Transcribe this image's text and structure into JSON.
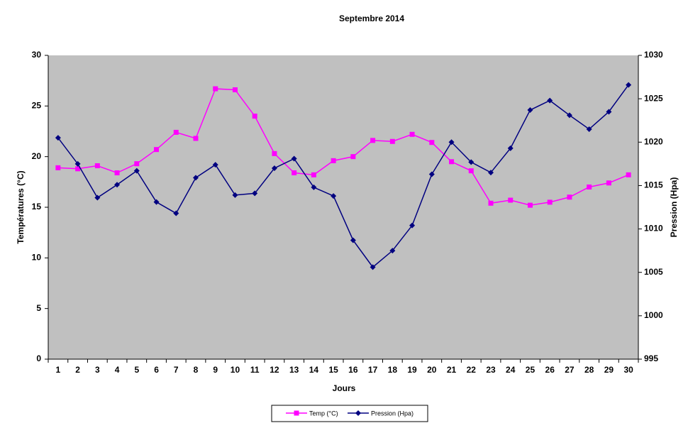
{
  "chart_data": {
    "type": "line",
    "title": "Septembre 2014",
    "x_label": "Jours",
    "y_label": "Températures (°C)",
    "y2_label": "Pression (Hpa)",
    "categories": [
      "1",
      "2",
      "3",
      "4",
      "5",
      "6",
      "7",
      "8",
      "9",
      "10",
      "11",
      "12",
      "13",
      "14",
      "15",
      "16",
      "17",
      "18",
      "19",
      "20",
      "21",
      "22",
      "23",
      "24",
      "25",
      "26",
      "27",
      "28",
      "29",
      "30"
    ],
    "series": [
      {
        "name": "Temp (°C)",
        "color": "#ff00ff",
        "marker": "square",
        "values": [
          18.9,
          18.8,
          19.1,
          18.4,
          19.3,
          20.7,
          22.4,
          21.8,
          26.7,
          26.6,
          24.0,
          20.3,
          18.4,
          18.2,
          19.6,
          20.0,
          21.6,
          21.5,
          22.2,
          21.4,
          19.5,
          18.6,
          15.4,
          15.7,
          15.2,
          15.5,
          16.0,
          17.0,
          17.4,
          18.2
        ]
      },
      {
        "name": "Pression (Hpa)",
        "color": "#000080",
        "marker": "diamond",
        "axis": "y2",
        "values": [
          1020.5,
          1017.5,
          1013.6,
          1015.1,
          1016.7,
          1013.1,
          1011.8,
          1015.9,
          1017.4,
          1013.9,
          1014.1,
          1017.0,
          1018.1,
          1014.8,
          1013.8,
          1008.7,
          1005.6,
          1007.5,
          1010.4,
          1016.3,
          1020.0,
          1017.7,
          1016.5,
          1019.3,
          1023.7,
          1024.8,
          1023.1,
          1021.5,
          1023.5,
          1026.6
        ]
      }
    ],
    "ylim": [
      0,
      30
    ],
    "yticks": [
      0,
      5,
      10,
      15,
      20,
      25,
      30
    ],
    "y2lim": [
      995,
      1030
    ],
    "y2ticks": [
      995,
      1000,
      1005,
      1010,
      1015,
      1020,
      1025,
      1030
    ],
    "legend": "bottom",
    "plot_background": "#c0c0c0"
  }
}
